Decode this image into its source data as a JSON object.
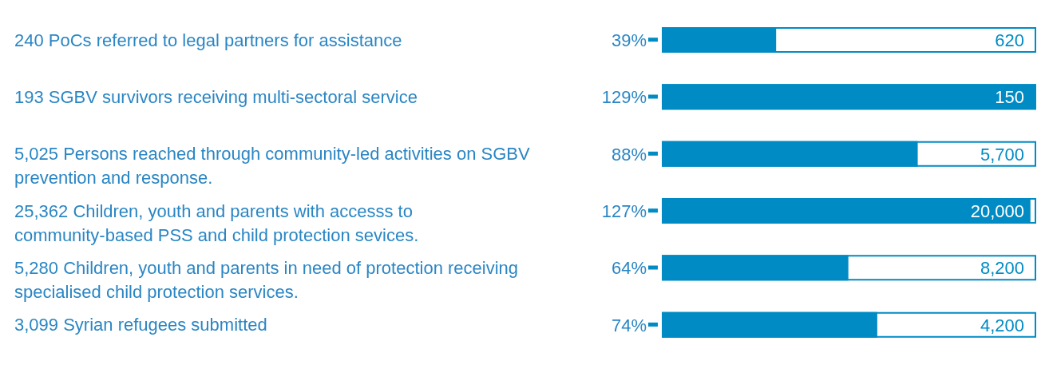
{
  "chart_data": {
    "type": "bar",
    "orientation": "horizontal",
    "categories": [
      "240 PoCs referred to legal partners for assistance",
      "193 SGBV survivors receiving multi-sectoral service",
      "5,025 Persons reached through community-led activities on SGBV prevention and response.",
      "25,362 Children, youth and parents with accesss to community-based PSS and child protection sevices.",
      "5,280 Children, youth and parents in need of protection receiving specialised child protection services.",
      "3,099 Syrian refugees submitted"
    ],
    "series": [
      {
        "color": "#008bc4",
        "values": [
          39,
          129,
          88,
          127,
          64,
          74
        ],
        "value_labels": [
          "39%",
          "129%",
          "88%",
          "127%",
          "64%",
          "74%"
        ]
      }
    ],
    "annotations": [
      "620",
      "150",
      "5,700",
      "20,000",
      "8,200",
      "4,200"
    ]
  }
}
